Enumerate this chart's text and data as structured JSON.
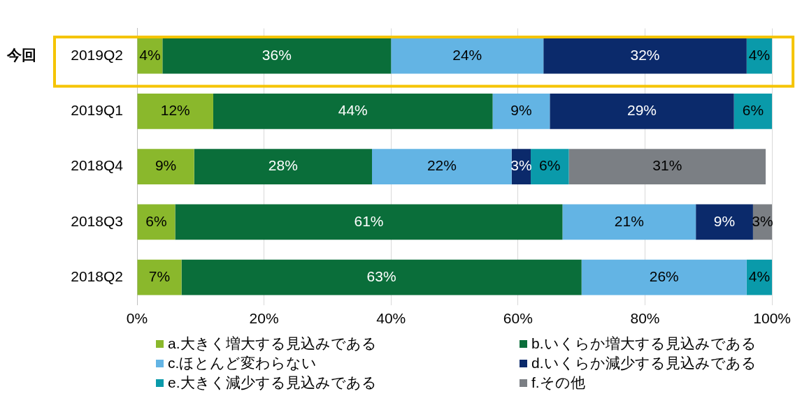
{
  "chart_data": {
    "type": "bar",
    "orientation": "horizontal",
    "stacked": true,
    "categories": [
      "2019Q2",
      "2019Q1",
      "2018Q4",
      "2018Q3",
      "2018Q2"
    ],
    "series": [
      {
        "name": "a.大きく増大する見込みである",
        "color": "#8ab82c",
        "values": [
          4,
          12,
          9,
          6,
          7
        ],
        "value_labels": [
          "4%",
          "12%",
          "9%",
          "6%",
          "7%"
        ]
      },
      {
        "name": "b.いくらか増大する見込みである",
        "color": "#0a6e3a",
        "values": [
          36,
          44,
          28,
          61,
          63
        ],
        "value_labels": [
          "36%",
          "44%",
          "28%",
          "61%",
          "63%"
        ]
      },
      {
        "name": "c.ほとんど変わらない",
        "color": "#63b4e4",
        "values": [
          24,
          9,
          22,
          21,
          26
        ],
        "value_labels": [
          "24%",
          "9%",
          "22%",
          "21%",
          "26%"
        ]
      },
      {
        "name": "d.いくらか減少する見込みである",
        "color": "#0b2a6b",
        "values": [
          32,
          29,
          3,
          9,
          null
        ],
        "value_labels": [
          "32%",
          "29%",
          "3%",
          "9%",
          null
        ]
      },
      {
        "name": "e.大きく減少する見込みである",
        "color": "#0a9aaa",
        "values": [
          4,
          6,
          6,
          null,
          4
        ],
        "value_labels": [
          "4%",
          "6%",
          "6%",
          null,
          "4%"
        ]
      },
      {
        "name": "f.その他",
        "color": "#7b7f84",
        "values": [
          null,
          null,
          31,
          3,
          null
        ],
        "value_labels": [
          null,
          null,
          "31%",
          "3%",
          null
        ]
      }
    ],
    "xlim": [
      0,
      100
    ],
    "xticks": [
      {
        "value": 0,
        "label": "0%"
      },
      {
        "value": 20,
        "label": "20%"
      },
      {
        "value": 40,
        "label": "40%"
      },
      {
        "value": 60,
        "label": "60%"
      },
      {
        "value": 80,
        "label": "80%"
      },
      {
        "value": 100,
        "label": "100%"
      }
    ],
    "grid": "x",
    "legend": "bottom",
    "annotations": [
      "今回"
    ]
  }
}
